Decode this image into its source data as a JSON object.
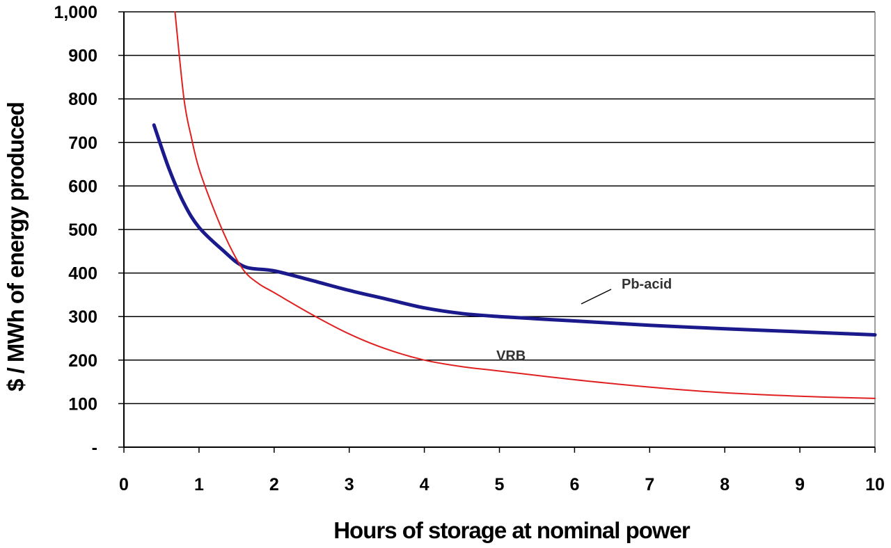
{
  "chart_data": {
    "type": "line",
    "xlabel": "Hours of storage at nominal power",
    "ylabel": "$ / MWh of energy produced",
    "xlim": [
      0,
      10
    ],
    "ylim": [
      0,
      1000
    ],
    "x_ticks": [
      "0",
      "1",
      "2",
      "3",
      "4",
      "5",
      "6",
      "7",
      "8",
      "9",
      "10"
    ],
    "y_ticks": [
      "-",
      "100",
      "200",
      "300",
      "400",
      "500",
      "600",
      "700",
      "800",
      "900",
      "1,000"
    ],
    "grid": "horizontal",
    "series": [
      {
        "name": "Pb-acid",
        "color": "#1a1a8c",
        "x": [
          0.4,
          0.6,
          0.8,
          1.0,
          1.3,
          1.6,
          2.0,
          2.5,
          3.0,
          3.5,
          4.0,
          4.5,
          5.0,
          6.0,
          7.0,
          8.0,
          9.0,
          10.0
        ],
        "y": [
          740,
          640,
          560,
          505,
          455,
          415,
          405,
          383,
          360,
          340,
          320,
          307,
          300,
          290,
          280,
          272,
          265,
          258
        ]
      },
      {
        "name": "VRB",
        "color": "#e02020",
        "x": [
          0.68,
          0.8,
          0.9,
          1.0,
          1.2,
          1.4,
          1.6,
          1.8,
          2.0,
          2.5,
          3.0,
          3.5,
          4.0,
          4.5,
          5.0,
          6.0,
          7.0,
          8.0,
          9.0,
          10.0
        ],
        "y": [
          1000,
          800,
          710,
          640,
          545,
          465,
          405,
          375,
          355,
          305,
          260,
          225,
          200,
          185,
          175,
          155,
          138,
          125,
          117,
          112
        ]
      }
    ]
  }
}
